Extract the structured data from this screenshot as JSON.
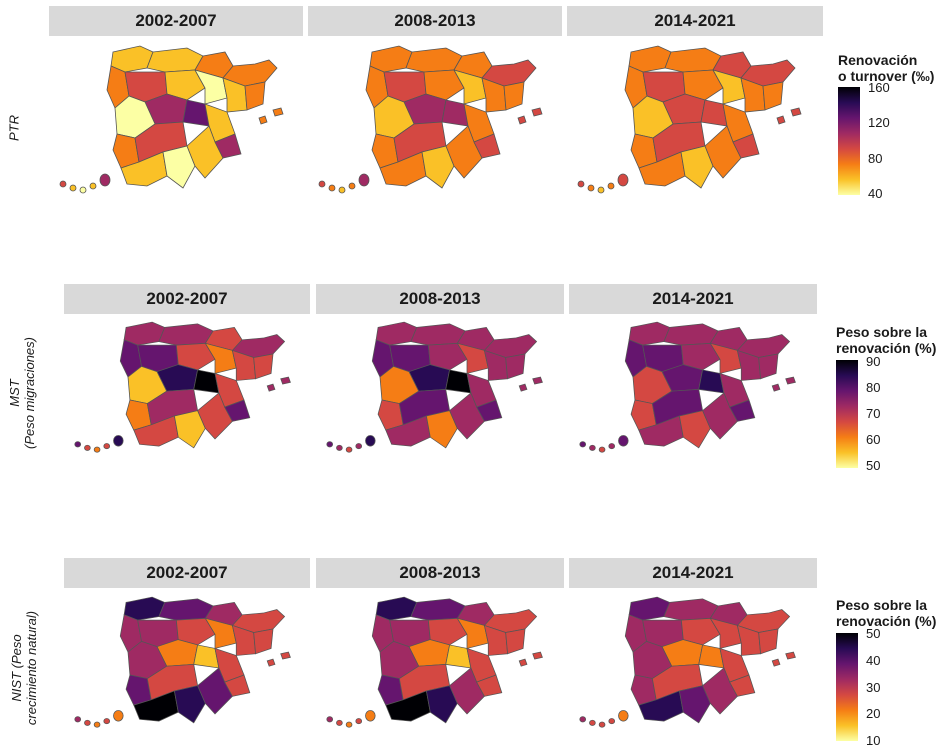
{
  "rows": [
    {
      "row_label": "PTR",
      "row_label_line2": "",
      "panels": [
        "2002-2007",
        "2008-2013",
        "2014-2021"
      ],
      "legend": {
        "title_line1": "Renovación",
        "title_line2": "o turnover (‰)",
        "ticks": [
          "160",
          "120",
          "80",
          "40"
        ],
        "scale": "inferno",
        "range": [
          40,
          160
        ]
      }
    },
    {
      "row_label": "MST",
      "row_label_line2": "(Peso migraciones)",
      "panels": [
        "2002-2007",
        "2008-2013",
        "2014-2021"
      ],
      "legend": {
        "title_line1": "Peso sobre la",
        "title_line2": "renovación (%)",
        "ticks": [
          "90",
          "80",
          "70",
          "60",
          "50"
        ],
        "scale": "inferno",
        "range": [
          50,
          90
        ]
      }
    },
    {
      "row_label": "NIST (Peso",
      "row_label_line2": "crecimiento natural)",
      "panels": [
        "2002-2007",
        "2008-2013",
        "2014-2021"
      ],
      "legend": {
        "title_line1": "Peso sobre la",
        "title_line2": "renovación (%)",
        "ticks": [
          "50",
          "40",
          "30",
          "20",
          "10"
        ],
        "scale": "inferno",
        "range": [
          10,
          50
        ]
      }
    }
  ],
  "colors": {
    "strip_bg": "#d9d9d9",
    "province_border": "#555555",
    "inferno": [
      "#fcffa4",
      "#fac127",
      "#f57d15",
      "#d44842",
      "#9f2a63",
      "#65156e",
      "#280b54",
      "#000004"
    ]
  }
}
